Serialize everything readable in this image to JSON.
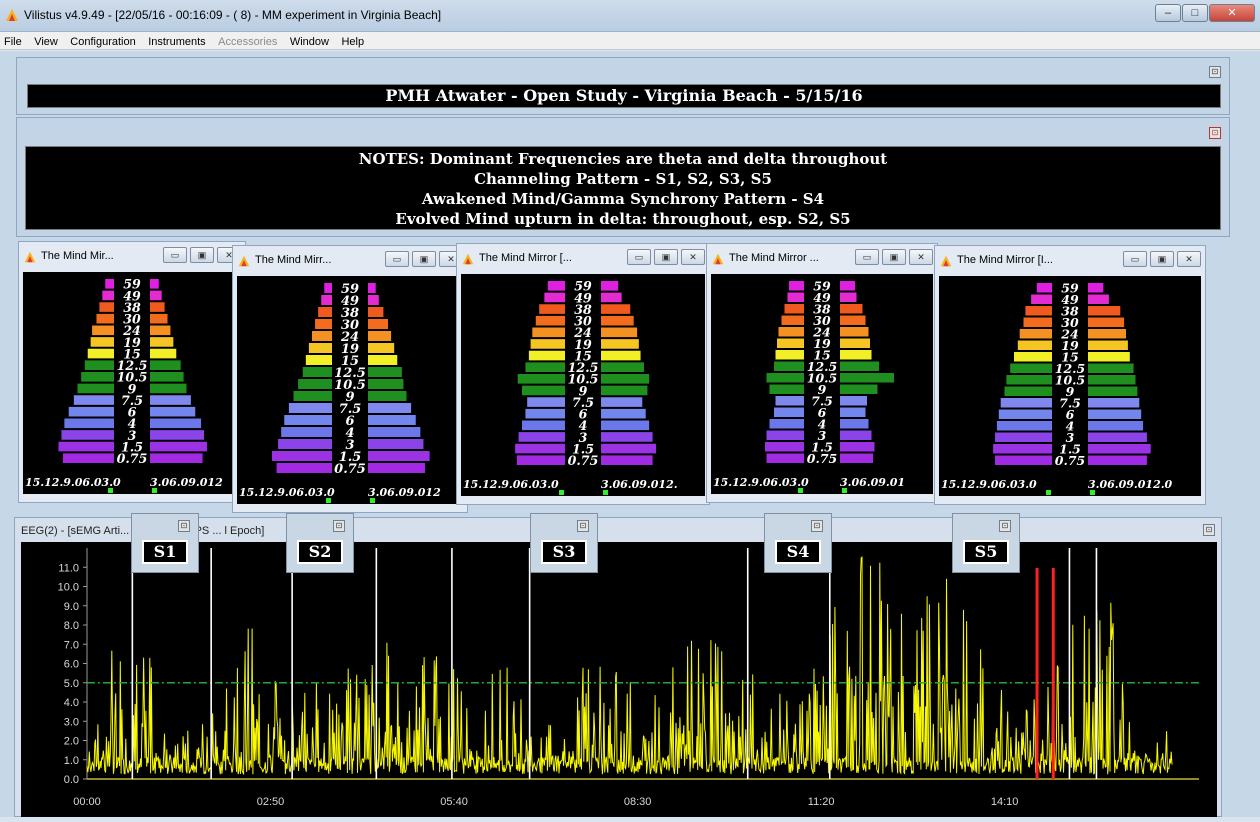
{
  "window": {
    "title": "Vilistus v4.9.49 - [22/05/16 - 00:16:09 - ( 8) - MM experiment in Virginia Beach]",
    "minimize": "‒",
    "maximize": "□",
    "close": "✕"
  },
  "menu": [
    "File",
    "View",
    "Configuration",
    "Instruments",
    "Accessories",
    "Window",
    "Help"
  ],
  "menu_disabled": [
    "Accessories"
  ],
  "header_panel": {
    "text": "PMH Atwater - Open Study - Virginia Beach - 5/15/16"
  },
  "notes_panel": {
    "lines": [
      "NOTES: Dominant Frequencies are theta and delta throughout",
      "Channeling Pattern - S1, S2, S3, S5",
      "Awakened Mind/Gamma Synchrony Pattern - S4",
      "Evolved Mind upturn in delta: throughout, esp. S2, S5"
    ]
  },
  "mind_mirrors": [
    {
      "title": "The Mind Mir...",
      "left_axis": "15.12.9.06.03.0",
      "right_axis": "3.06.09.012"
    },
    {
      "title": "The Mind Mirr...",
      "left_axis": "15.12.9.06.03.0",
      "right_axis": "3.06.09.012"
    },
    {
      "title": "The Mind Mirror [...",
      "left_axis": "15.12.9.06.03.0",
      "right_axis": "3.06.09.012."
    },
    {
      "title": "The Mind Mirror ...",
      "left_axis": "15.12.9.06.03.0",
      "right_axis": "3.06.09.01"
    },
    {
      "title": "The Mind Mirror [I...",
      "left_axis": "15.12.9.06.03.0",
      "right_axis": "3.06.09.012.0"
    }
  ],
  "frequency_bands": [
    "59",
    "49",
    "38",
    "30",
    "24",
    "19",
    "15",
    "12.5",
    "10.5",
    "9",
    "7.5",
    "6",
    "4",
    "3",
    "1.5",
    "0.75"
  ],
  "band_colors": [
    "#e020e0",
    "#e32bd2",
    "#f05a1e",
    "#f36b1c",
    "#f59023",
    "#f5c523",
    "#f3ef27",
    "#1f8f1f",
    "#1f8f1f",
    "#1f8f1f",
    "#7f88ec",
    "#7386ee",
    "#6c77ea",
    "#8a44e8",
    "#9b32e4",
    "#a02be2"
  ],
  "mm_left_values": [
    [
      0.12,
      0.16,
      0.2,
      0.24,
      0.3,
      0.32,
      0.36,
      0.4,
      0.45,
      0.5,
      0.55,
      0.62,
      0.68,
      0.72,
      0.76,
      0.7
    ],
    [
      0.1,
      0.14,
      0.18,
      0.22,
      0.26,
      0.3,
      0.34,
      0.38,
      0.44,
      0.5,
      0.56,
      0.62,
      0.66,
      0.7,
      0.78,
      0.72
    ],
    [
      0.2,
      0.24,
      0.3,
      0.34,
      0.38,
      0.4,
      0.42,
      0.46,
      0.55,
      0.5,
      0.44,
      0.46,
      0.5,
      0.54,
      0.58,
      0.56
    ],
    [
      0.2,
      0.22,
      0.26,
      0.3,
      0.34,
      0.36,
      0.38,
      0.4,
      0.5,
      0.46,
      0.38,
      0.4,
      0.46,
      0.5,
      0.52,
      0.5
    ],
    [
      0.16,
      0.22,
      0.28,
      0.3,
      0.34,
      0.36,
      0.4,
      0.44,
      0.48,
      0.5,
      0.54,
      0.56,
      0.58,
      0.6,
      0.62,
      0.6
    ]
  ],
  "mm_right_values": [
    [
      0.12,
      0.16,
      0.2,
      0.24,
      0.28,
      0.32,
      0.36,
      0.42,
      0.46,
      0.5,
      0.56,
      0.62,
      0.7,
      0.74,
      0.78,
      0.72
    ],
    [
      0.1,
      0.14,
      0.2,
      0.26,
      0.3,
      0.34,
      0.38,
      0.44,
      0.46,
      0.5,
      0.56,
      0.62,
      0.68,
      0.72,
      0.8,
      0.74
    ],
    [
      0.2,
      0.24,
      0.34,
      0.38,
      0.42,
      0.44,
      0.46,
      0.5,
      0.56,
      0.54,
      0.48,
      0.52,
      0.56,
      0.6,
      0.64,
      0.6
    ],
    [
      0.2,
      0.22,
      0.3,
      0.34,
      0.38,
      0.4,
      0.42,
      0.52,
      0.72,
      0.5,
      0.36,
      0.34,
      0.38,
      0.42,
      0.46,
      0.44
    ],
    [
      0.16,
      0.22,
      0.34,
      0.38,
      0.4,
      0.42,
      0.44,
      0.48,
      0.5,
      0.52,
      0.54,
      0.56,
      0.58,
      0.62,
      0.66,
      0.62
    ]
  ],
  "eeg_panel": {
    "title": "EEG(2) - [sEMG Arti... de RMS 32SPS ... l Epoch]",
    "session_labels": [
      "S1",
      "S2",
      "S3",
      "S4",
      "S5"
    ],
    "threshold_color": "#22a83a",
    "trace_color": "#f8f800",
    "marker_color": "#ff2020"
  },
  "chart_data": {
    "type": "line",
    "title": "",
    "xlabel": "",
    "ylabel": "",
    "x_ticks": [
      "00:00",
      "02:50",
      "05:40",
      "08:30",
      "11:20",
      "14:10"
    ],
    "y_ticks": [
      "0.0",
      "1.0",
      "2.0",
      "3.0",
      "4.0",
      "5.0",
      "6.0",
      "7.0",
      "8.0",
      "9.0",
      "10.0",
      "11.0"
    ],
    "ylim": [
      0,
      12
    ],
    "xlim_seconds": [
      0,
      1030
    ],
    "threshold": 5.0,
    "trace_end_seconds": 1005,
    "session_markers_seconds": [
      [
        42,
        115
      ],
      [
        190,
        268
      ],
      [
        338,
        410
      ],
      [
        612,
        688
      ],
      [
        910,
        935
      ]
    ],
    "event_markers_seconds": [
      880,
      895
    ],
    "approx_envelope": [
      {
        "t": 0,
        "v": 1.2
      },
      {
        "t": 40,
        "v": 11.5
      },
      {
        "t": 80,
        "v": 2.0
      },
      {
        "t": 120,
        "v": 4.2
      },
      {
        "t": 150,
        "v": 8.3
      },
      {
        "t": 180,
        "v": 5.2
      },
      {
        "t": 230,
        "v": 6.0
      },
      {
        "t": 270,
        "v": 6.8
      },
      {
        "t": 300,
        "v": 8.1
      },
      {
        "t": 330,
        "v": 7.0
      },
      {
        "t": 360,
        "v": 3.2
      },
      {
        "t": 380,
        "v": 6.8
      },
      {
        "t": 420,
        "v": 3.1
      },
      {
        "t": 440,
        "v": 2.8
      },
      {
        "t": 460,
        "v": 6.2
      },
      {
        "t": 500,
        "v": 6.5
      },
      {
        "t": 520,
        "v": 4.8
      },
      {
        "t": 560,
        "v": 7.6
      },
      {
        "t": 600,
        "v": 6.8
      },
      {
        "t": 630,
        "v": 6.2
      },
      {
        "t": 660,
        "v": 4.5
      },
      {
        "t": 700,
        "v": 11.8
      },
      {
        "t": 740,
        "v": 11.5
      },
      {
        "t": 760,
        "v": 10.8
      },
      {
        "t": 800,
        "v": 11.0
      },
      {
        "t": 830,
        "v": 9.2
      },
      {
        "t": 860,
        "v": 3.0
      },
      {
        "t": 900,
        "v": 6.4
      },
      {
        "t": 940,
        "v": 11.5
      },
      {
        "t": 970,
        "v": 3.2
      },
      {
        "t": 1000,
        "v": 3.0
      }
    ]
  }
}
